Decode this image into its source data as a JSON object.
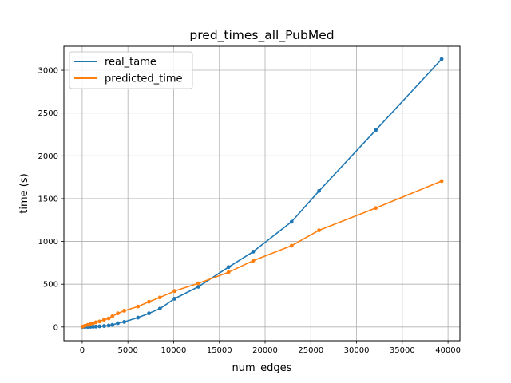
{
  "chart_data": {
    "type": "line",
    "title": "pred_times_all_PubMed",
    "xlabel": "num_edges",
    "ylabel": "time (s)",
    "xlim": [
      -2000,
      41300
    ],
    "ylim": [
      -160,
      3280
    ],
    "x_ticks": [
      0,
      5000,
      10000,
      15000,
      20000,
      25000,
      30000,
      35000,
      40000
    ],
    "y_ticks": [
      0,
      500,
      1000,
      1500,
      2000,
      2500,
      3000
    ],
    "grid": true,
    "legend_position": "top-left",
    "series": [
      {
        "name": "real_tame",
        "color": "#1f77b4",
        "x": [
          30,
          300,
          600,
          900,
          1200,
          1500,
          1900,
          2400,
          2900,
          3300,
          3900,
          4600,
          6100,
          7300,
          8500,
          10100,
          12700,
          16000,
          18700,
          22900,
          25900,
          32100,
          39300
        ],
        "y": [
          0,
          1,
          2,
          3,
          4,
          5,
          8,
          12,
          18,
          25,
          45,
          60,
          110,
          160,
          215,
          330,
          470,
          700,
          880,
          1230,
          1590,
          2300,
          3130
        ]
      },
      {
        "name": "predicted_time",
        "color": "#ff7f0e",
        "x": [
          30,
          300,
          600,
          900,
          1200,
          1500,
          1900,
          2400,
          2900,
          3300,
          3900,
          4600,
          6100,
          7300,
          8500,
          10100,
          12700,
          16000,
          18700,
          22900,
          25900,
          32100,
          39300
        ],
        "y": [
          5,
          15,
          25,
          35,
          45,
          55,
          65,
          85,
          100,
          125,
          160,
          190,
          240,
          295,
          345,
          420,
          510,
          640,
          775,
          950,
          1130,
          1390,
          1705
        ]
      }
    ]
  }
}
